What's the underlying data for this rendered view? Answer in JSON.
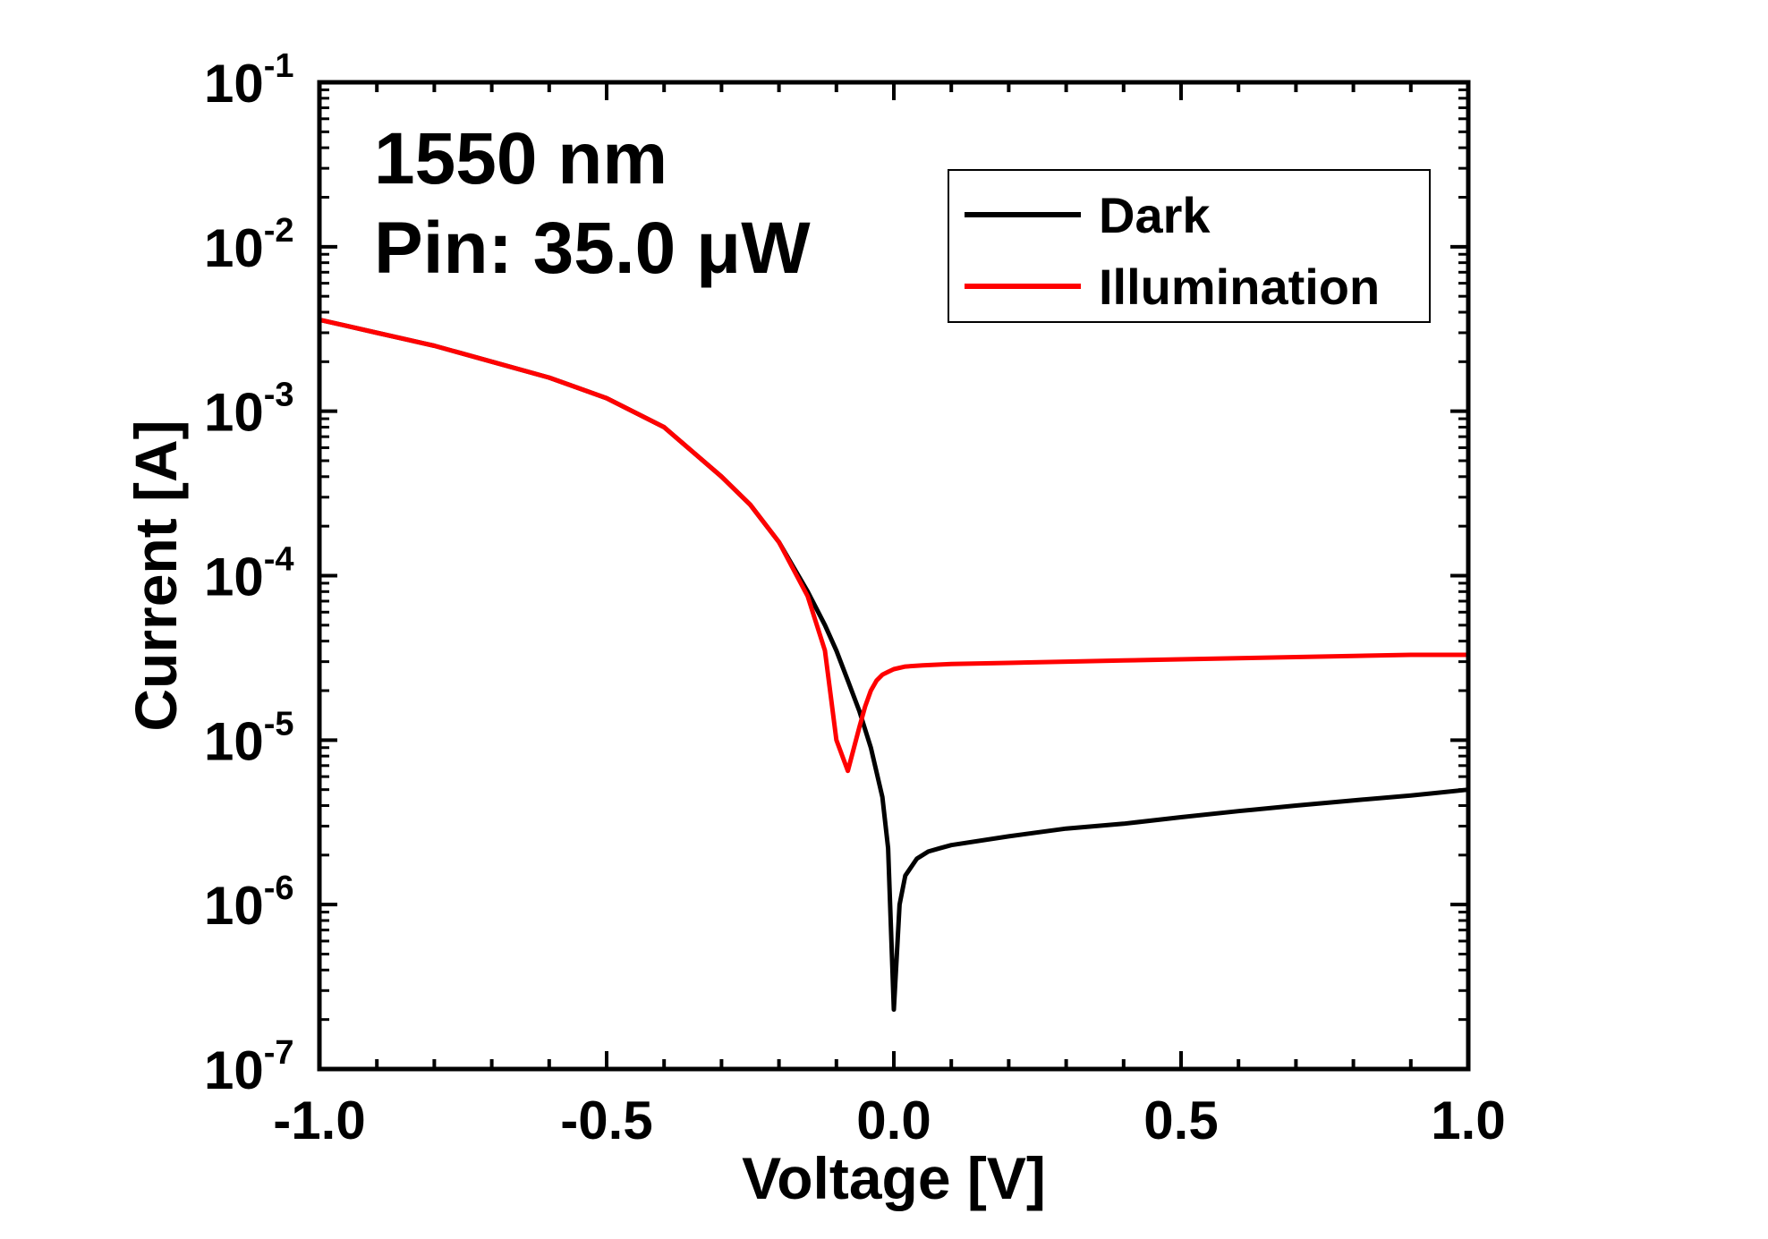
{
  "chart_data": {
    "type": "line",
    "yscale": "log",
    "xlabel": "Voltage [V]",
    "ylabel": "Current [A]",
    "xlim": [
      -1.0,
      1.0
    ],
    "ylim": [
      1e-07,
      0.1
    ],
    "x_ticks": [
      -1.0,
      -0.5,
      0.0,
      0.5,
      1.0
    ],
    "x_tick_labels": [
      "-1.0",
      "-0.5",
      "0.0",
      "0.5",
      "1.0"
    ],
    "y_ticks": [
      1e-07,
      1e-06,
      1e-05,
      0.0001,
      0.001,
      0.01,
      0.1
    ],
    "y_tick_labels": [
      {
        "base": "10",
        "exp": "-7"
      },
      {
        "base": "10",
        "exp": "-6"
      },
      {
        "base": "10",
        "exp": "-5"
      },
      {
        "base": "10",
        "exp": "-4"
      },
      {
        "base": "10",
        "exp": "-3"
      },
      {
        "base": "10",
        "exp": "-2"
      },
      {
        "base": "10",
        "exp": "-1"
      }
    ],
    "grid": false,
    "legend_position": "top-right",
    "annotations": [
      "1550 nm",
      "Pin: 35.0 μW"
    ],
    "series": [
      {
        "name": "Dark",
        "color": "#000000",
        "x": [
          -1.0,
          -0.9,
          -0.8,
          -0.7,
          -0.6,
          -0.5,
          -0.4,
          -0.3,
          -0.25,
          -0.2,
          -0.15,
          -0.12,
          -0.1,
          -0.08,
          -0.06,
          -0.04,
          -0.02,
          -0.01,
          0.0,
          0.01,
          0.02,
          0.04,
          0.06,
          0.08,
          0.1,
          0.2,
          0.3,
          0.4,
          0.5,
          0.6,
          0.7,
          0.8,
          0.9,
          1.0
        ],
        "y": [
          0.0036,
          0.003,
          0.0025,
          0.002,
          0.0016,
          0.0012,
          0.0008,
          0.0004,
          0.00027,
          0.00016,
          8e-05,
          5e-05,
          3.5e-05,
          2.3e-05,
          1.5e-05,
          9e-06,
          4.5e-06,
          2.2e-06,
          2.3e-07,
          1e-06,
          1.5e-06,
          1.9e-06,
          2.1e-06,
          2.2e-06,
          2.3e-06,
          2.6e-06,
          2.9e-06,
          3.1e-06,
          3.4e-06,
          3.7e-06,
          4e-06,
          4.3e-06,
          4.6e-06,
          5e-06
        ]
      },
      {
        "name": "Illumination",
        "color": "#ff0000",
        "x": [
          -1.0,
          -0.9,
          -0.8,
          -0.7,
          -0.6,
          -0.5,
          -0.4,
          -0.3,
          -0.25,
          -0.2,
          -0.15,
          -0.12,
          -0.1,
          -0.08,
          -0.06,
          -0.05,
          -0.04,
          -0.03,
          -0.02,
          -0.01,
          0.0,
          0.02,
          0.05,
          0.1,
          0.2,
          0.3,
          0.4,
          0.5,
          0.6,
          0.7,
          0.8,
          0.9,
          1.0
        ],
        "y": [
          0.0036,
          0.003,
          0.0025,
          0.002,
          0.0016,
          0.0012,
          0.0008,
          0.0004,
          0.00027,
          0.00016,
          7.5e-05,
          3.5e-05,
          1e-05,
          6.5e-06,
          1.2e-05,
          1.6e-05,
          2e-05,
          2.3e-05,
          2.5e-05,
          2.6e-05,
          2.7e-05,
          2.8e-05,
          2.85e-05,
          2.9e-05,
          2.95e-05,
          3e-05,
          3.05e-05,
          3.1e-05,
          3.15e-05,
          3.2e-05,
          3.25e-05,
          3.3e-05,
          3.3e-05
        ]
      }
    ]
  }
}
